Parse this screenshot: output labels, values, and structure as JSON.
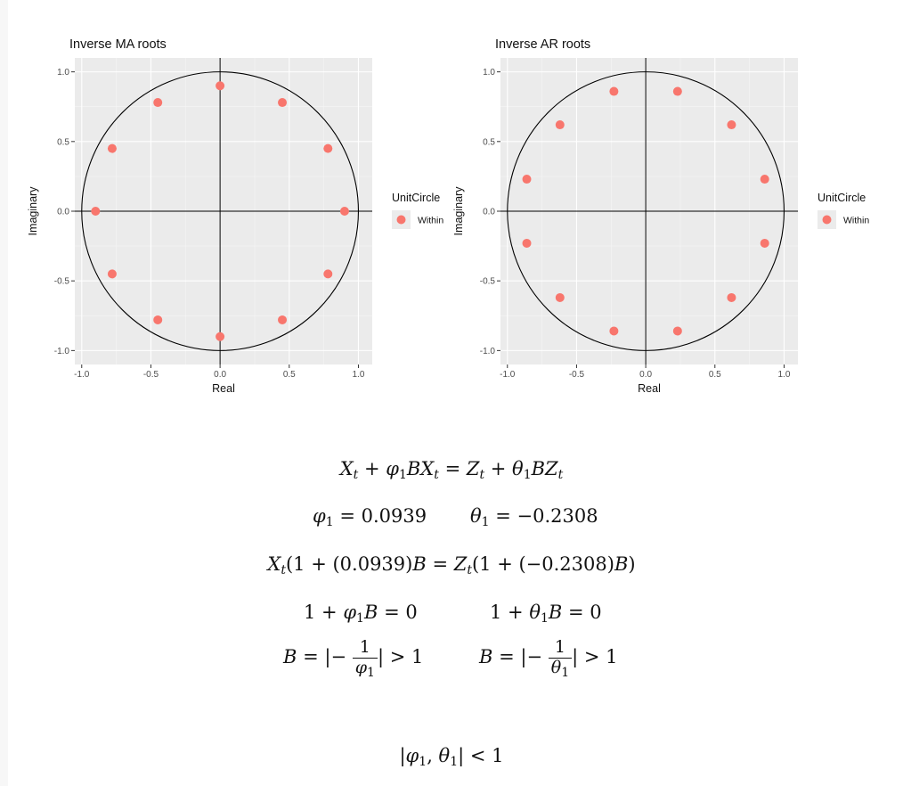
{
  "chart_data": [
    {
      "type": "scatter",
      "title": "Inverse MA roots",
      "xlabel": "Real",
      "ylabel": "Imaginary",
      "xlim": [
        -1.05,
        1.1
      ],
      "ylim": [
        -1.1,
        1.1
      ],
      "x_ticks": [
        -1.0,
        -0.5,
        0.0,
        0.5,
        1.0
      ],
      "y_ticks": [
        -1.0,
        -0.5,
        0.0,
        0.5,
        1.0
      ],
      "x_tick_labels": [
        "-1.0",
        "-0.5",
        "0.0",
        "0.5",
        "1.0"
      ],
      "y_tick_labels": [
        "-1.0",
        "-0.5",
        "0.0",
        "0.5",
        "1.0"
      ],
      "unit_circle": true,
      "grid": true,
      "legend": {
        "title": "UnitCircle",
        "position": "right",
        "items": [
          "Within"
        ]
      },
      "series": [
        {
          "name": "Within",
          "color": "#F8766D",
          "points": [
            [
              0.9,
              0.0
            ],
            [
              0.78,
              0.45
            ],
            [
              0.45,
              0.78
            ],
            [
              0.0,
              0.9
            ],
            [
              -0.45,
              0.78
            ],
            [
              -0.78,
              0.45
            ],
            [
              -0.9,
              0.0
            ],
            [
              -0.78,
              -0.45
            ],
            [
              -0.45,
              -0.78
            ],
            [
              0.0,
              -0.9
            ],
            [
              0.45,
              -0.78
            ],
            [
              0.78,
              -0.45
            ]
          ]
        }
      ]
    },
    {
      "type": "scatter",
      "title": "Inverse AR roots",
      "xlabel": "Real",
      "ylabel": "Imaginary",
      "xlim": [
        -1.05,
        1.1
      ],
      "ylim": [
        -1.1,
        1.1
      ],
      "x_ticks": [
        -1.0,
        -0.5,
        0.0,
        0.5,
        1.0
      ],
      "y_ticks": [
        -1.0,
        -0.5,
        0.0,
        0.5,
        1.0
      ],
      "x_tick_labels": [
        "-1.0",
        "-0.5",
        "0.0",
        "0.5",
        "1.0"
      ],
      "y_tick_labels": [
        "-1.0",
        "-0.5",
        "0.0",
        "0.5",
        "1.0"
      ],
      "unit_circle": true,
      "grid": true,
      "legend": {
        "title": "UnitCircle",
        "position": "right",
        "items": [
          "Within"
        ]
      },
      "series": [
        {
          "name": "Within",
          "color": "#F8766D",
          "points": [
            [
              0.86,
              0.23
            ],
            [
              0.62,
              0.62
            ],
            [
              0.23,
              0.86
            ],
            [
              -0.23,
              0.86
            ],
            [
              -0.62,
              0.62
            ],
            [
              -0.86,
              0.23
            ],
            [
              -0.86,
              -0.23
            ],
            [
              -0.62,
              -0.62
            ],
            [
              -0.23,
              -0.86
            ],
            [
              0.23,
              -0.86
            ],
            [
              0.62,
              -0.62
            ],
            [
              0.86,
              -0.23
            ]
          ]
        }
      ]
    }
  ],
  "equations": {
    "model": {
      "lhs": "X_t + φ_1 B X_t",
      "rhs": "Z_t + θ_1 B Z_t"
    },
    "phi1": "0.0939",
    "theta1": "−0.2308",
    "coef_lhs": "(0.0939)",
    "coef_rhs": "(−0.2308)",
    "one": "1",
    "zero": "0",
    "condition": "|φ_1, θ_1| < 1"
  }
}
